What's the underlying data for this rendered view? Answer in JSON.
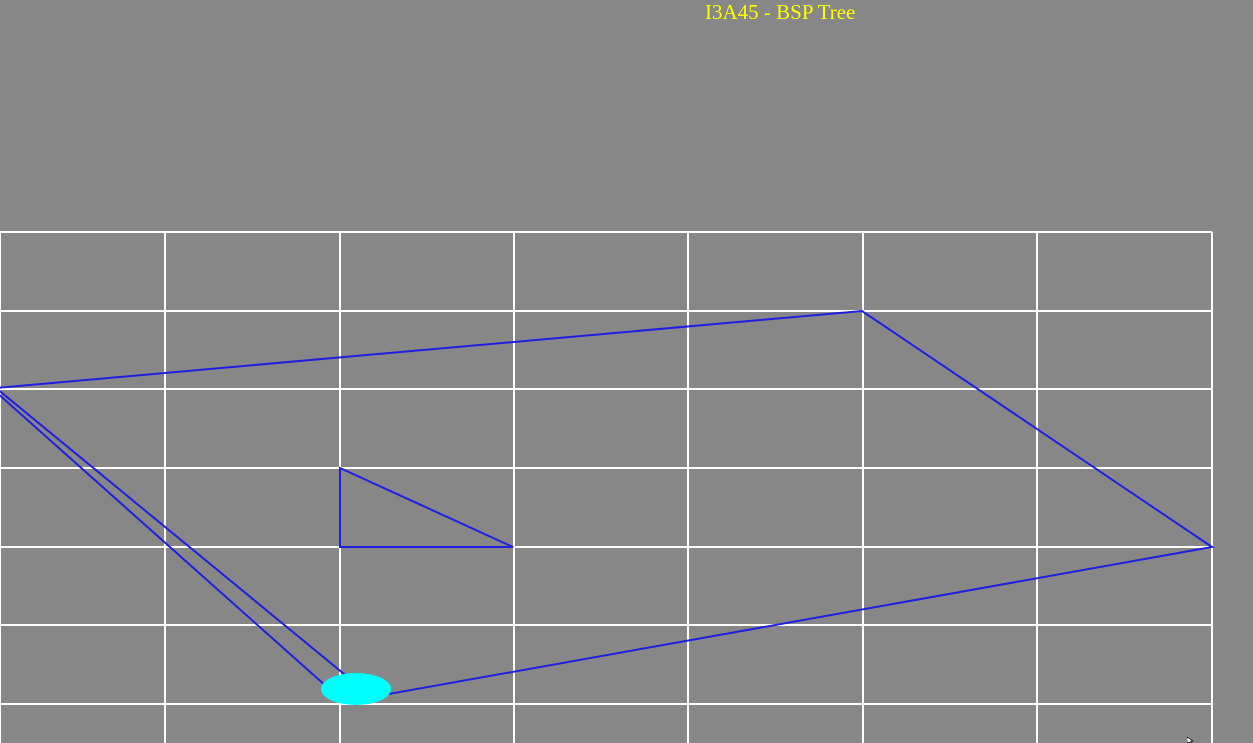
{
  "window": {
    "title": "I3A45 - BSP Tree"
  },
  "colors": {
    "background": "#878787",
    "title": "#ffff00",
    "grid": "#ffffff",
    "polygon": "#1f1fe0",
    "viewer": "#00ffff"
  },
  "scene": {
    "grid": {
      "columns": 7,
      "rows_visible": 6
    },
    "polygons": [
      {
        "name": "outer-quadrilateral",
        "vertex_count": 4
      },
      {
        "name": "inner-triangle",
        "vertex_count": 3
      }
    ],
    "viewer": {
      "name": "camera-marker",
      "shape": "ellipse"
    }
  },
  "icons": {
    "cursor": "mouse-pointer-icon"
  }
}
